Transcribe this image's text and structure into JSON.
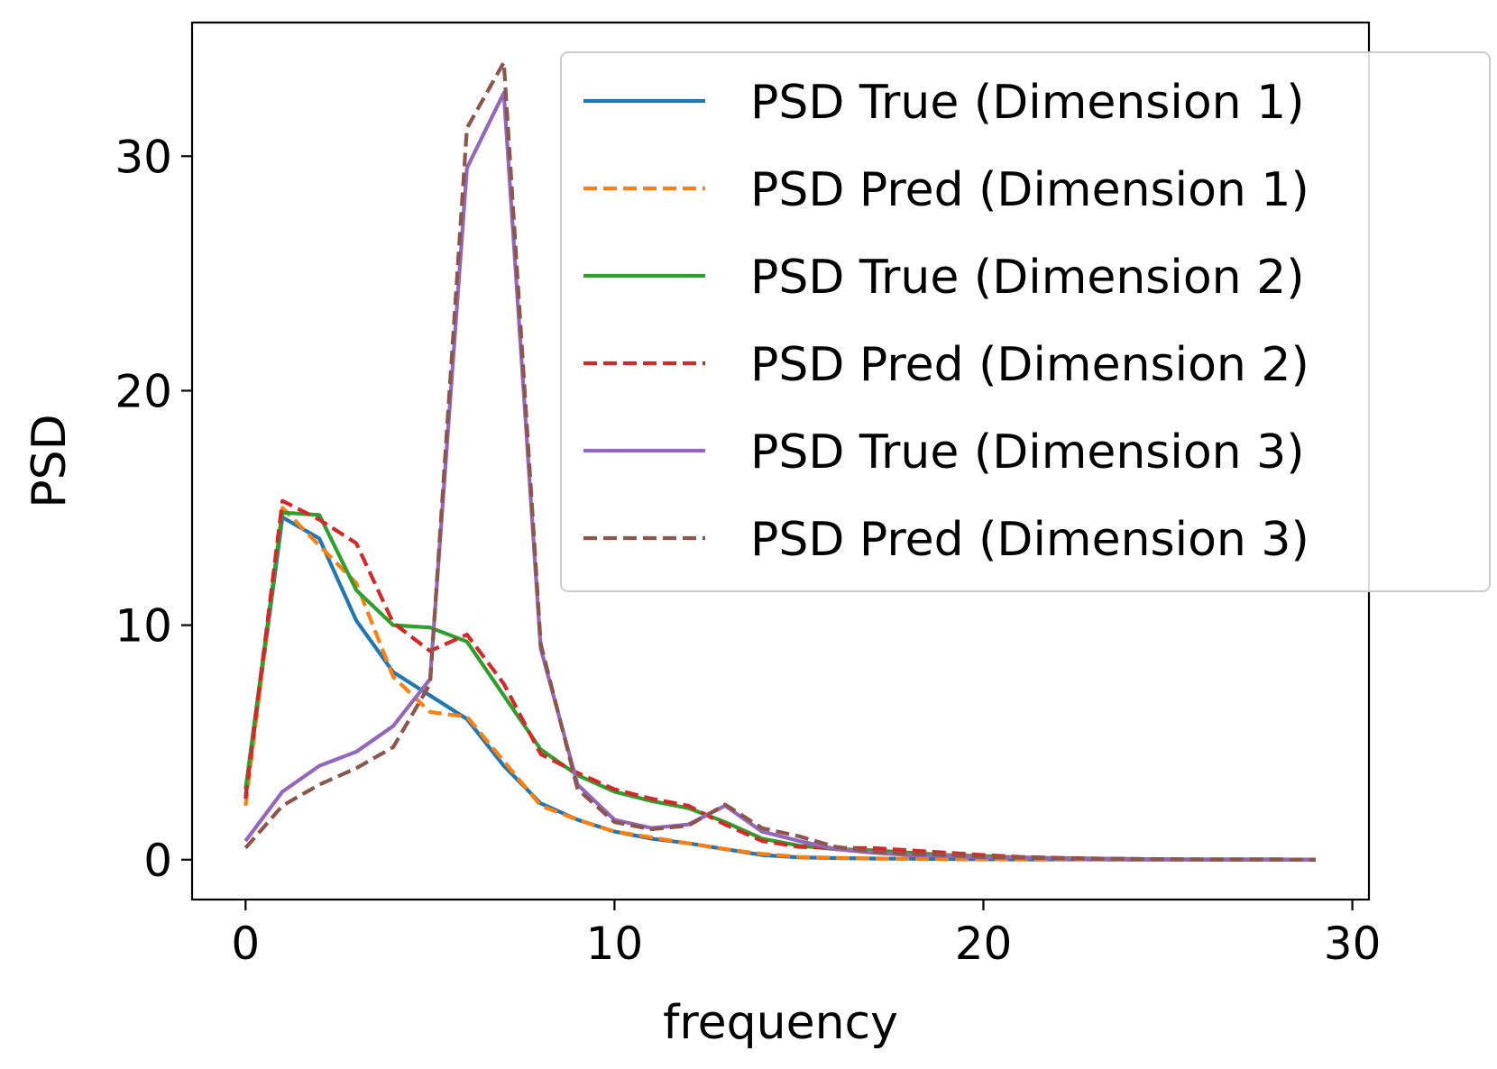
{
  "chart_data": {
    "type": "line",
    "title": "",
    "xlabel": "frequency",
    "ylabel": "PSD",
    "xlim": [
      -1.45,
      30.45
    ],
    "ylim": [
      -1.7,
      35.7
    ],
    "xticks": [
      0,
      10,
      20,
      30
    ],
    "yticks": [
      0,
      10,
      20,
      30
    ],
    "grid": false,
    "legend_position": "top-right",
    "x": [
      0,
      1,
      2,
      3,
      4,
      5,
      6,
      7,
      8,
      9,
      10,
      11,
      12,
      13,
      14,
      15,
      16,
      17,
      18,
      19,
      20,
      21,
      22,
      23,
      24,
      25,
      26,
      27,
      28,
      29
    ],
    "series": [
      {
        "name": "PSD True (Dimension 1)",
        "color": "#1f77b4",
        "dash": "solid",
        "values": [
          2.7,
          14.6,
          13.7,
          10.2,
          8.0,
          7.0,
          6.0,
          4.0,
          2.4,
          1.7,
          1.2,
          0.9,
          0.7,
          0.45,
          0.2,
          0.1,
          0.07,
          0.05,
          0.04,
          0.03,
          0.02,
          0.01,
          0.01,
          0.01,
          0.0,
          0.0,
          0.0,
          0.0,
          0.0,
          0.0
        ]
      },
      {
        "name": "PSD Pred (Dimension 1)",
        "color": "#ff7f0e",
        "dash": "dashed",
        "values": [
          2.3,
          15.0,
          13.4,
          11.8,
          7.8,
          6.3,
          6.1,
          4.2,
          2.3,
          1.7,
          1.2,
          0.95,
          0.7,
          0.45,
          0.25,
          0.12,
          0.08,
          0.05,
          0.04,
          0.03,
          0.02,
          0.01,
          0.01,
          0.01,
          0.0,
          0.0,
          0.0,
          0.0,
          0.0,
          0.0
        ]
      },
      {
        "name": "PSD True (Dimension 2)",
        "color": "#2ca02c",
        "dash": "solid",
        "values": [
          3.0,
          14.8,
          14.7,
          11.5,
          10.0,
          9.9,
          9.3,
          7.0,
          4.7,
          3.6,
          2.9,
          2.5,
          2.2,
          1.6,
          0.9,
          0.6,
          0.45,
          0.4,
          0.3,
          0.2,
          0.15,
          0.1,
          0.07,
          0.05,
          0.03,
          0.02,
          0.01,
          0.01,
          0.01,
          0.0
        ]
      },
      {
        "name": "PSD Pred (Dimension 2)",
        "color": "#d62728",
        "dash": "dashed",
        "values": [
          2.6,
          15.3,
          14.5,
          13.5,
          10.1,
          8.9,
          9.6,
          7.5,
          4.5,
          3.7,
          3.0,
          2.6,
          2.3,
          1.5,
          0.8,
          0.55,
          0.5,
          0.5,
          0.4,
          0.3,
          0.2,
          0.12,
          0.08,
          0.05,
          0.03,
          0.02,
          0.01,
          0.01,
          0.01,
          0.0
        ]
      },
      {
        "name": "PSD True (Dimension 3)",
        "color": "#9467bd",
        "dash": "solid",
        "values": [
          0.8,
          2.9,
          4.0,
          4.6,
          5.7,
          7.7,
          29.5,
          32.7,
          9.0,
          3.2,
          1.7,
          1.35,
          1.5,
          2.3,
          1.2,
          0.8,
          0.45,
          0.3,
          0.2,
          0.15,
          0.1,
          0.08,
          0.05,
          0.04,
          0.03,
          0.02,
          0.01,
          0.01,
          0.01,
          0.0
        ]
      },
      {
        "name": "PSD Pred (Dimension 3)",
        "color": "#8c564b",
        "dash": "dashed",
        "values": [
          0.5,
          2.3,
          3.2,
          3.9,
          4.8,
          7.5,
          31.2,
          34.0,
          9.2,
          3.0,
          1.6,
          1.3,
          1.45,
          2.35,
          1.35,
          1.0,
          0.55,
          0.35,
          0.25,
          0.2,
          0.12,
          0.09,
          0.06,
          0.04,
          0.03,
          0.02,
          0.01,
          0.01,
          0.01,
          0.0
        ]
      }
    ]
  }
}
